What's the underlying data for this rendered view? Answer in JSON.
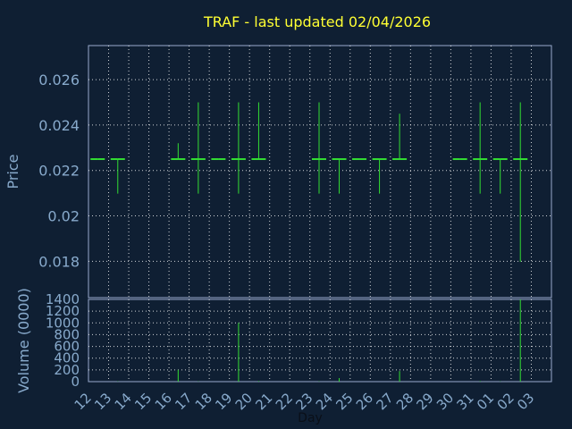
{
  "chart_data": [
    {
      "type": "ohlc",
      "title": "TRAF - last updated 02/04/2026",
      "ylabel": "Price",
      "ylim": [
        0.0164,
        0.0275
      ],
      "yticks": [
        0.018,
        0.02,
        0.022,
        0.024,
        0.026
      ],
      "ytick_labels": [
        "0.018",
        "0.02",
        "0.022",
        "0.024",
        "0.026"
      ],
      "grid": true,
      "x": [
        "12",
        "13",
        "14",
        "15",
        "16",
        "17",
        "18",
        "19",
        "20",
        "21",
        "22",
        "23",
        "24",
        "25",
        "26",
        "27",
        "28",
        "29",
        "30",
        "31",
        "01",
        "02",
        "03"
      ],
      "bars": [
        {
          "x": "12",
          "high": 0.0225,
          "low": 0.0225,
          "open": 0.0225,
          "close": 0.0225
        },
        {
          "x": "13",
          "high": 0.0225,
          "low": 0.021,
          "open": 0.0225,
          "close": 0.0225
        },
        {
          "x": "16",
          "high": 0.0232,
          "low": 0.0225,
          "open": 0.0225,
          "close": 0.0225
        },
        {
          "x": "17",
          "high": 0.025,
          "low": 0.021,
          "open": 0.0225,
          "close": 0.0225
        },
        {
          "x": "18",
          "high": 0.0225,
          "low": 0.0225,
          "open": 0.0225,
          "close": 0.0225
        },
        {
          "x": "19",
          "high": 0.025,
          "low": 0.021,
          "open": 0.0225,
          "close": 0.0225
        },
        {
          "x": "20",
          "high": 0.025,
          "low": 0.0225,
          "open": 0.0225,
          "close": 0.0225
        },
        {
          "x": "23",
          "high": 0.025,
          "low": 0.021,
          "open": 0.0225,
          "close": 0.0225
        },
        {
          "x": "24",
          "high": 0.0225,
          "low": 0.021,
          "open": 0.0225,
          "close": 0.0225
        },
        {
          "x": "25",
          "high": 0.0225,
          "low": 0.0225,
          "open": 0.0225,
          "close": 0.0225
        },
        {
          "x": "26",
          "high": 0.0225,
          "low": 0.021,
          "open": 0.0225,
          "close": 0.0225
        },
        {
          "x": "27",
          "high": 0.0245,
          "low": 0.0225,
          "open": 0.0225,
          "close": 0.0225
        },
        {
          "x": "30",
          "high": 0.0225,
          "low": 0.0225,
          "open": 0.0225,
          "close": 0.0225
        },
        {
          "x": "31",
          "high": 0.025,
          "low": 0.021,
          "open": 0.0225,
          "close": 0.0225
        },
        {
          "x": "01",
          "high": 0.0225,
          "low": 0.021,
          "open": 0.0225,
          "close": 0.0225
        },
        {
          "x": "02",
          "high": 0.025,
          "low": 0.018,
          "open": 0.0225,
          "close": 0.0225
        }
      ],
      "color": "#33dd33"
    },
    {
      "type": "bar",
      "ylabel": "Volume (0000)",
      "xlabel": "Day",
      "ylim": [
        0,
        1400
      ],
      "yticks": [
        0,
        200,
        400,
        600,
        800,
        1000,
        1200,
        1400
      ],
      "ytick_labels": [
        "0",
        "200",
        "400",
        "600",
        "800",
        "1000",
        "1200",
        "1400"
      ],
      "grid": true,
      "categories": [
        "12",
        "13",
        "14",
        "15",
        "16",
        "17",
        "18",
        "19",
        "20",
        "21",
        "22",
        "23",
        "24",
        "25",
        "26",
        "27",
        "28",
        "29",
        "30",
        "31",
        "01",
        "02",
        "03"
      ],
      "values": [
        0,
        5,
        0,
        0,
        200,
        5,
        0,
        1000,
        10,
        0,
        0,
        5,
        60,
        0,
        0,
        180,
        0,
        0,
        0,
        10,
        5,
        1400,
        0
      ],
      "color": "#33dd33"
    }
  ],
  "colors": {
    "background": "#0f1f33",
    "title": "#ffff33",
    "axis_text": "#88aacc",
    "frame": "#99aacc",
    "grid": "#ffffff",
    "data": "#33dd33"
  }
}
